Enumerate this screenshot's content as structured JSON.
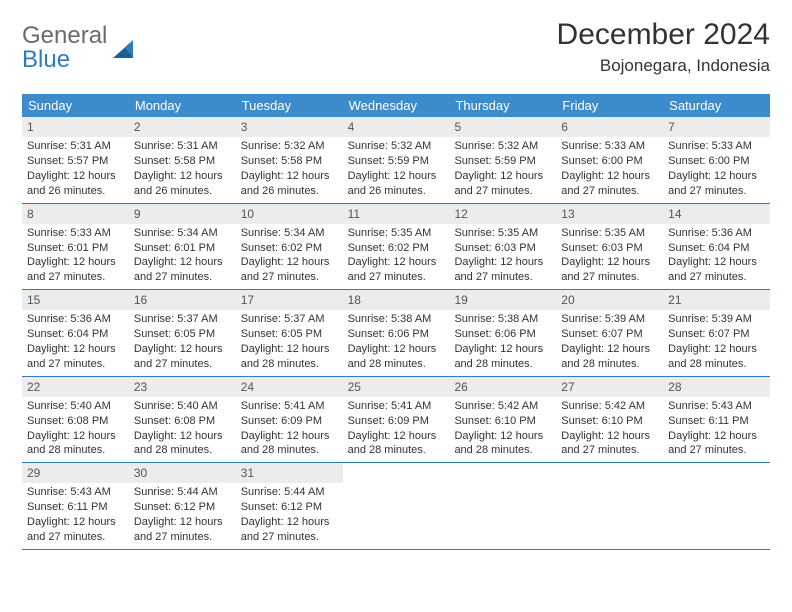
{
  "brand": {
    "top": "General",
    "bottom": "Blue"
  },
  "title": "December 2024",
  "location": "Bojonegara, Indonesia",
  "colors": {
    "header_bg": "#3c8ccc",
    "rule": "#2f7bbf",
    "daynum_bg": "#ececec",
    "text": "#333333",
    "logo_gray": "#6b6b6b",
    "logo_blue": "#2f7bbf"
  },
  "weekdays": [
    "Sunday",
    "Monday",
    "Tuesday",
    "Wednesday",
    "Thursday",
    "Friday",
    "Saturday"
  ],
  "weeks": [
    [
      {
        "n": "1",
        "sr": "Sunrise: 5:31 AM",
        "ss": "Sunset: 5:57 PM",
        "d1": "Daylight: 12 hours",
        "d2": "and 26 minutes."
      },
      {
        "n": "2",
        "sr": "Sunrise: 5:31 AM",
        "ss": "Sunset: 5:58 PM",
        "d1": "Daylight: 12 hours",
        "d2": "and 26 minutes."
      },
      {
        "n": "3",
        "sr": "Sunrise: 5:32 AM",
        "ss": "Sunset: 5:58 PM",
        "d1": "Daylight: 12 hours",
        "d2": "and 26 minutes."
      },
      {
        "n": "4",
        "sr": "Sunrise: 5:32 AM",
        "ss": "Sunset: 5:59 PM",
        "d1": "Daylight: 12 hours",
        "d2": "and 26 minutes."
      },
      {
        "n": "5",
        "sr": "Sunrise: 5:32 AM",
        "ss": "Sunset: 5:59 PM",
        "d1": "Daylight: 12 hours",
        "d2": "and 27 minutes."
      },
      {
        "n": "6",
        "sr": "Sunrise: 5:33 AM",
        "ss": "Sunset: 6:00 PM",
        "d1": "Daylight: 12 hours",
        "d2": "and 27 minutes."
      },
      {
        "n": "7",
        "sr": "Sunrise: 5:33 AM",
        "ss": "Sunset: 6:00 PM",
        "d1": "Daylight: 12 hours",
        "d2": "and 27 minutes."
      }
    ],
    [
      {
        "n": "8",
        "sr": "Sunrise: 5:33 AM",
        "ss": "Sunset: 6:01 PM",
        "d1": "Daylight: 12 hours",
        "d2": "and 27 minutes."
      },
      {
        "n": "9",
        "sr": "Sunrise: 5:34 AM",
        "ss": "Sunset: 6:01 PM",
        "d1": "Daylight: 12 hours",
        "d2": "and 27 minutes."
      },
      {
        "n": "10",
        "sr": "Sunrise: 5:34 AM",
        "ss": "Sunset: 6:02 PM",
        "d1": "Daylight: 12 hours",
        "d2": "and 27 minutes."
      },
      {
        "n": "11",
        "sr": "Sunrise: 5:35 AM",
        "ss": "Sunset: 6:02 PM",
        "d1": "Daylight: 12 hours",
        "d2": "and 27 minutes."
      },
      {
        "n": "12",
        "sr": "Sunrise: 5:35 AM",
        "ss": "Sunset: 6:03 PM",
        "d1": "Daylight: 12 hours",
        "d2": "and 27 minutes."
      },
      {
        "n": "13",
        "sr": "Sunrise: 5:35 AM",
        "ss": "Sunset: 6:03 PM",
        "d1": "Daylight: 12 hours",
        "d2": "and 27 minutes."
      },
      {
        "n": "14",
        "sr": "Sunrise: 5:36 AM",
        "ss": "Sunset: 6:04 PM",
        "d1": "Daylight: 12 hours",
        "d2": "and 27 minutes."
      }
    ],
    [
      {
        "n": "15",
        "sr": "Sunrise: 5:36 AM",
        "ss": "Sunset: 6:04 PM",
        "d1": "Daylight: 12 hours",
        "d2": "and 27 minutes."
      },
      {
        "n": "16",
        "sr": "Sunrise: 5:37 AM",
        "ss": "Sunset: 6:05 PM",
        "d1": "Daylight: 12 hours",
        "d2": "and 27 minutes."
      },
      {
        "n": "17",
        "sr": "Sunrise: 5:37 AM",
        "ss": "Sunset: 6:05 PM",
        "d1": "Daylight: 12 hours",
        "d2": "and 28 minutes."
      },
      {
        "n": "18",
        "sr": "Sunrise: 5:38 AM",
        "ss": "Sunset: 6:06 PM",
        "d1": "Daylight: 12 hours",
        "d2": "and 28 minutes."
      },
      {
        "n": "19",
        "sr": "Sunrise: 5:38 AM",
        "ss": "Sunset: 6:06 PM",
        "d1": "Daylight: 12 hours",
        "d2": "and 28 minutes."
      },
      {
        "n": "20",
        "sr": "Sunrise: 5:39 AM",
        "ss": "Sunset: 6:07 PM",
        "d1": "Daylight: 12 hours",
        "d2": "and 28 minutes."
      },
      {
        "n": "21",
        "sr": "Sunrise: 5:39 AM",
        "ss": "Sunset: 6:07 PM",
        "d1": "Daylight: 12 hours",
        "d2": "and 28 minutes."
      }
    ],
    [
      {
        "n": "22",
        "sr": "Sunrise: 5:40 AM",
        "ss": "Sunset: 6:08 PM",
        "d1": "Daylight: 12 hours",
        "d2": "and 28 minutes."
      },
      {
        "n": "23",
        "sr": "Sunrise: 5:40 AM",
        "ss": "Sunset: 6:08 PM",
        "d1": "Daylight: 12 hours",
        "d2": "and 28 minutes."
      },
      {
        "n": "24",
        "sr": "Sunrise: 5:41 AM",
        "ss": "Sunset: 6:09 PM",
        "d1": "Daylight: 12 hours",
        "d2": "and 28 minutes."
      },
      {
        "n": "25",
        "sr": "Sunrise: 5:41 AM",
        "ss": "Sunset: 6:09 PM",
        "d1": "Daylight: 12 hours",
        "d2": "and 28 minutes."
      },
      {
        "n": "26",
        "sr": "Sunrise: 5:42 AM",
        "ss": "Sunset: 6:10 PM",
        "d1": "Daylight: 12 hours",
        "d2": "and 28 minutes."
      },
      {
        "n": "27",
        "sr": "Sunrise: 5:42 AM",
        "ss": "Sunset: 6:10 PM",
        "d1": "Daylight: 12 hours",
        "d2": "and 27 minutes."
      },
      {
        "n": "28",
        "sr": "Sunrise: 5:43 AM",
        "ss": "Sunset: 6:11 PM",
        "d1": "Daylight: 12 hours",
        "d2": "and 27 minutes."
      }
    ],
    [
      {
        "n": "29",
        "sr": "Sunrise: 5:43 AM",
        "ss": "Sunset: 6:11 PM",
        "d1": "Daylight: 12 hours",
        "d2": "and 27 minutes."
      },
      {
        "n": "30",
        "sr": "Sunrise: 5:44 AM",
        "ss": "Sunset: 6:12 PM",
        "d1": "Daylight: 12 hours",
        "d2": "and 27 minutes."
      },
      {
        "n": "31",
        "sr": "Sunrise: 5:44 AM",
        "ss": "Sunset: 6:12 PM",
        "d1": "Daylight: 12 hours",
        "d2": "and 27 minutes."
      },
      null,
      null,
      null,
      null
    ]
  ]
}
